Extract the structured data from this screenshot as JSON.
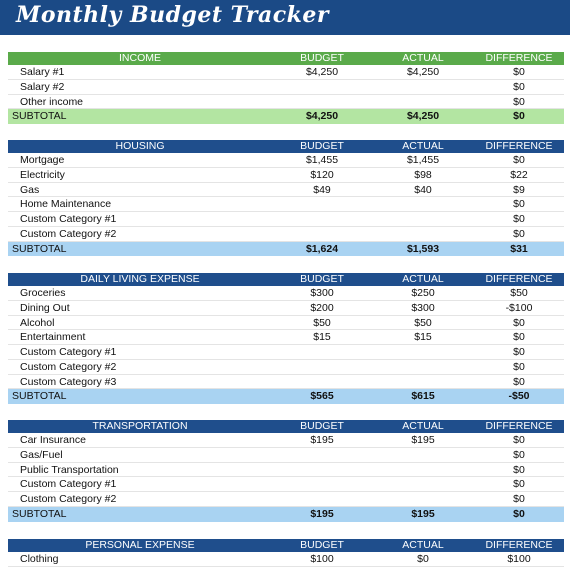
{
  "title": "Monthly Budget Tracker",
  "sections": [
    {
      "name": "INCOME",
      "theme": "green",
      "headers": [
        "BUDGET",
        "ACTUAL",
        "DIFFERENCE"
      ],
      "rows": [
        {
          "label": "Salary #1",
          "budget": "$4,250",
          "actual": "$4,250",
          "difference": "$0"
        },
        {
          "label": "Salary #2",
          "budget": "",
          "actual": "",
          "difference": "$0"
        },
        {
          "label": "Other income",
          "budget": "",
          "actual": "",
          "difference": "$0"
        }
      ],
      "subtotal": {
        "label": "SUBTOTAL",
        "budget": "$4,250",
        "actual": "$4,250",
        "difference": "$0"
      }
    },
    {
      "name": "HOUSING",
      "theme": "blue",
      "headers": [
        "BUDGET",
        "ACTUAL",
        "DIFFERENCE"
      ],
      "rows": [
        {
          "label": "Mortgage",
          "budget": "$1,455",
          "actual": "$1,455",
          "difference": "$0"
        },
        {
          "label": "Electricity",
          "budget": "$120",
          "actual": "$98",
          "difference": "$22"
        },
        {
          "label": "Gas",
          "budget": "$49",
          "actual": "$40",
          "difference": "$9"
        },
        {
          "label": "Home Maintenance",
          "budget": "",
          "actual": "",
          "difference": "$0"
        },
        {
          "label": "Custom Category #1",
          "budget": "",
          "actual": "",
          "difference": "$0"
        },
        {
          "label": "Custom Category #2",
          "budget": "",
          "actual": "",
          "difference": "$0"
        }
      ],
      "subtotal": {
        "label": "SUBTOTAL",
        "budget": "$1,624",
        "actual": "$1,593",
        "difference": "$31"
      }
    },
    {
      "name": "DAILY LIVING EXPENSE",
      "theme": "blue",
      "headers": [
        "BUDGET",
        "ACTUAL",
        "DIFFERENCE"
      ],
      "rows": [
        {
          "label": "Groceries",
          "budget": "$300",
          "actual": "$250",
          "difference": "$50"
        },
        {
          "label": "Dining Out",
          "budget": "$200",
          "actual": "$300",
          "difference": "-$100"
        },
        {
          "label": "Alcohol",
          "budget": "$50",
          "actual": "$50",
          "difference": "$0"
        },
        {
          "label": "Entertainment",
          "budget": "$15",
          "actual": "$15",
          "difference": "$0"
        },
        {
          "label": "Custom Category #1",
          "budget": "",
          "actual": "",
          "difference": "$0"
        },
        {
          "label": "Custom Category #2",
          "budget": "",
          "actual": "",
          "difference": "$0"
        },
        {
          "label": "Custom Category #3",
          "budget": "",
          "actual": "",
          "difference": "$0"
        }
      ],
      "subtotal": {
        "label": "SUBTOTAL",
        "budget": "$565",
        "actual": "$615",
        "difference": "-$50"
      }
    },
    {
      "name": "TRANSPORTATION",
      "theme": "blue",
      "headers": [
        "BUDGET",
        "ACTUAL",
        "DIFFERENCE"
      ],
      "rows": [
        {
          "label": "Car Insurance",
          "budget": "$195",
          "actual": "$195",
          "difference": "$0"
        },
        {
          "label": "Gas/Fuel",
          "budget": "",
          "actual": "",
          "difference": "$0"
        },
        {
          "label": "Public Transportation",
          "budget": "",
          "actual": "",
          "difference": "$0"
        },
        {
          "label": "Custom Category #1",
          "budget": "",
          "actual": "",
          "difference": "$0"
        },
        {
          "label": "Custom Category #2",
          "budget": "",
          "actual": "",
          "difference": "$0"
        }
      ],
      "subtotal": {
        "label": "SUBTOTAL",
        "budget": "$195",
        "actual": "$195",
        "difference": "$0"
      }
    },
    {
      "name": "PERSONAL EXPENSE",
      "theme": "blue",
      "headers": [
        "BUDGET",
        "ACTUAL",
        "DIFFERENCE"
      ],
      "rows": [
        {
          "label": "Clothing",
          "budget": "$100",
          "actual": "$0",
          "difference": "$100"
        }
      ]
    }
  ]
}
